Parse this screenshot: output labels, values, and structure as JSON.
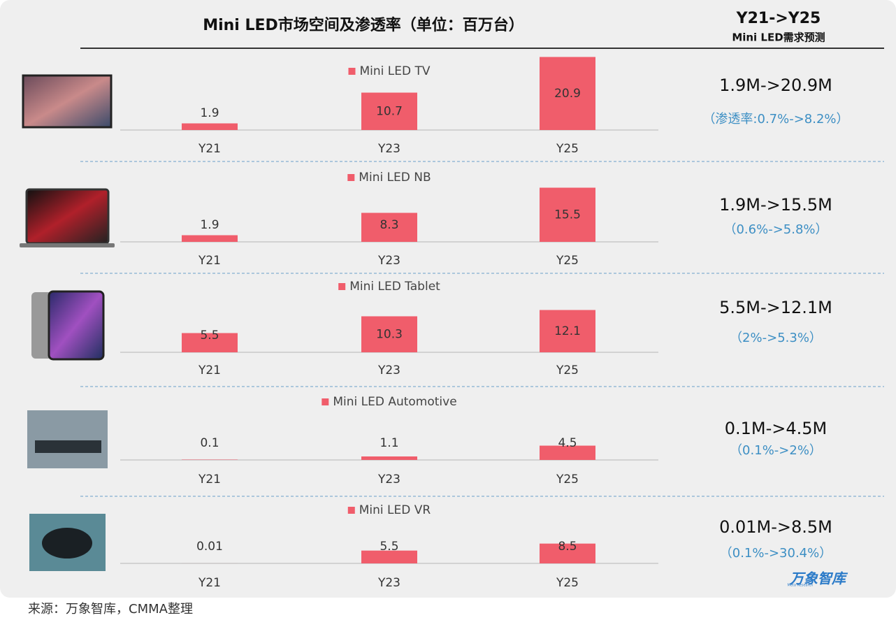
{
  "header": {
    "title": "Mini LED市场空间及渗透率（单位：百万台）",
    "forecast_title": "Y21->Y25",
    "forecast_subtitle": "Mini LED需求预测"
  },
  "chart_data": [
    {
      "type": "bar",
      "title": "Mini LED TV",
      "categories": [
        "Y21",
        "Y23",
        "Y25"
      ],
      "values": [
        1.9,
        10.7,
        20.9
      ],
      "color": "#f05d6b",
      "ylim": [
        0,
        20
      ]
    },
    {
      "type": "bar",
      "title": "Mini LED NB",
      "categories": [
        "Y21",
        "Y23",
        "Y25"
      ],
      "values": [
        1.9,
        8.3,
        15.5
      ],
      "color": "#f05d6b",
      "ylim": [
        0,
        20
      ]
    },
    {
      "type": "bar",
      "title": "Mini LED Tablet",
      "categories": [
        "Y21",
        "Y23",
        "Y25"
      ],
      "values": [
        5.5,
        10.3,
        12.1
      ],
      "color": "#f05d6b",
      "ylim": [
        0,
        20
      ]
    },
    {
      "type": "bar",
      "title": "Mini LED Automotive",
      "categories": [
        "Y21",
        "Y23",
        "Y25"
      ],
      "values": [
        0.1,
        1.1,
        4.5
      ],
      "color": "#f05d6b",
      "ylim": [
        0,
        22
      ]
    },
    {
      "type": "bar",
      "title": "Mini LED VR",
      "categories": [
        "Y21",
        "Y23",
        "Y25"
      ],
      "values": [
        0.01,
        5.5,
        8.5
      ],
      "color": "#f05d6b",
      "ylim": [
        0,
        30
      ]
    }
  ],
  "forecasts": [
    {
      "range": "1.9M->20.9M",
      "penetration": "（渗透率:0.7%->8.2%）"
    },
    {
      "range": "1.9M->15.5M",
      "penetration": "（0.6%->5.8%）"
    },
    {
      "range": "5.5M->12.1M",
      "penetration": "（2%->5.3%）"
    },
    {
      "range": "0.1M->4.5M",
      "penetration": "（0.1%->2%）"
    },
    {
      "range": "0.01M->8.5M",
      "penetration": "（0.1%->30.4%）"
    }
  ],
  "logo": {
    "name": "万象智库",
    "sub": "Meta Research"
  },
  "source": "来源：万象智库，CMMA整理"
}
